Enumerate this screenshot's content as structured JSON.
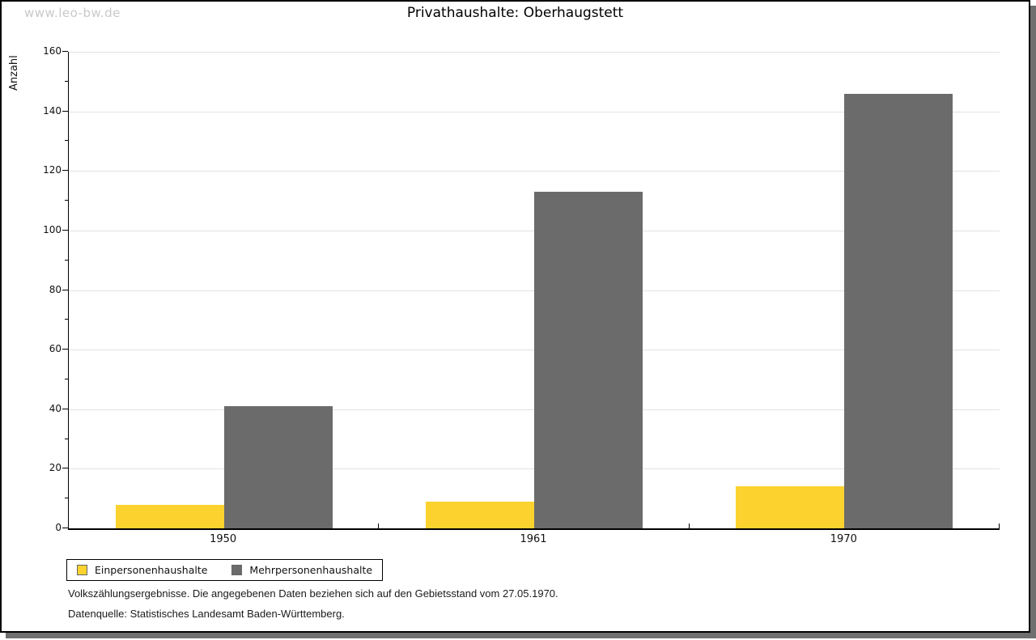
{
  "watermark": "www.leo-bw.de",
  "title": "Privathaushalte: Oberhaugstett",
  "chart_data": {
    "type": "bar",
    "title": "Privathaushalte: Oberhaugstett",
    "categories": [
      "1950",
      "1961",
      "1970"
    ],
    "series": [
      {
        "name": "Einpersonenhaushalte",
        "values": [
          8,
          9,
          14
        ],
        "color": "#FCD32E"
      },
      {
        "name": "Mehrpersonenhaushalte",
        "values": [
          41,
          113,
          146
        ],
        "color": "#6B6B6B"
      }
    ],
    "xlabel": "",
    "ylabel": "Anzahl",
    "ylim": [
      0,
      160
    ],
    "ytick_step": 20,
    "yminor_step": 10,
    "grid": true,
    "legend_position": "bottom-left"
  },
  "footnotes": {
    "line1": "Volkszählungsergebnisse. Die angegebenen Daten beziehen sich auf den Gebietsstand vom 27.05.1970.",
    "line2": "Datenquelle: Statistisches Landesamt Baden-Württemberg."
  },
  "colors": {
    "grid": "#E2E2E2",
    "axis": "#000000",
    "watermark": "#C9C9C9",
    "page_shadow": "#6F6F6F",
    "bar_einpersonen": "#FCD32E",
    "bar_mehrpersonen": "#6B6B6B"
  }
}
